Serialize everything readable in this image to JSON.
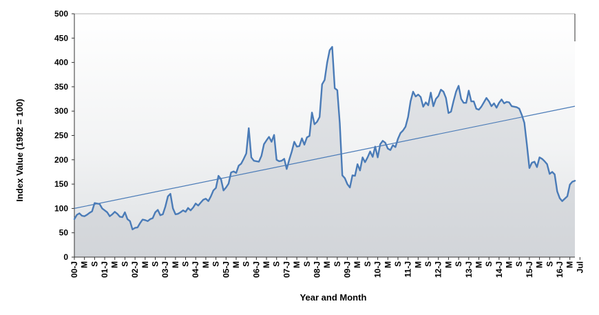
{
  "chart_data": {
    "type": "area",
    "title": "",
    "xlabel": "Year and Month",
    "ylabel": "Index Value (1982 = 100)",
    "ylim": [
      0,
      500
    ],
    "yticks": [
      0,
      50,
      100,
      150,
      200,
      250,
      300,
      350,
      400,
      450,
      500
    ],
    "grid": false,
    "legend": "none",
    "x_tick_labels": [
      "00-J",
      "M",
      "S",
      "01-J",
      "M",
      "S",
      "02-J",
      "M",
      "S",
      "03-J",
      "M",
      "S",
      "04-J",
      "M",
      "S",
      "05-J",
      "M",
      "S",
      "06-J",
      "M",
      "S",
      "07-J",
      "M",
      "S",
      "08-J",
      "M",
      "S",
      "09-J",
      "M",
      "S",
      "10-J",
      "M",
      "S",
      "11-J",
      "M",
      "S",
      "12-J",
      "M",
      "S",
      "13-J",
      "M",
      "S",
      "14-J",
      "M",
      "S",
      "15-J",
      "M",
      "S",
      "16-J",
      "M",
      "Jul"
    ],
    "series": [
      {
        "name": "Index Value",
        "start": "2000-01",
        "frequency": "monthly",
        "values": [
          78,
          87,
          90,
          85,
          84,
          87,
          91,
          94,
          111,
          110,
          109,
          100,
          96,
          92,
          84,
          88,
          93,
          89,
          83,
          82,
          92,
          78,
          74,
          57,
          60,
          61,
          70,
          77,
          76,
          74,
          78,
          80,
          92,
          97,
          86,
          88,
          104,
          125,
          130,
          100,
          88,
          89,
          92,
          96,
          93,
          101,
          96,
          102,
          110,
          106,
          112,
          118,
          120,
          115,
          125,
          137,
          142,
          167,
          160,
          137,
          143,
          151,
          174,
          176,
          173,
          188,
          192,
          202,
          213,
          265,
          205,
          198,
          197,
          196,
          208,
          232,
          240,
          247,
          237,
          251,
          200,
          197,
          198,
          202,
          181,
          200,
          217,
          237,
          227,
          228,
          244,
          231,
          246,
          249,
          297,
          273,
          278,
          288,
          355,
          364,
          400,
          425,
          432,
          347,
          343,
          275,
          168,
          162,
          150,
          143,
          168,
          167,
          191,
          178,
          205,
          195,
          205,
          217,
          206,
          227,
          205,
          232,
          239,
          235,
          223,
          220,
          230,
          226,
          243,
          255,
          260,
          268,
          288,
          320,
          340,
          330,
          334,
          329,
          309,
          318,
          312,
          338,
          310,
          325,
          331,
          344,
          340,
          327,
          296,
          299,
          321,
          340,
          352,
          325,
          317,
          317,
          342,
          320,
          320,
          305,
          303,
          309,
          318,
          327,
          320,
          310,
          316,
          307,
          317,
          324,
          316,
          319,
          318,
          310,
          309,
          308,
          305,
          292,
          276,
          232,
          183,
          194,
          196,
          185,
          205,
          202,
          197,
          191,
          171,
          175,
          170,
          135,
          121,
          115,
          120,
          125,
          149,
          155,
          157
        ],
        "color": "#4a7bb7"
      },
      {
        "name": "Trend",
        "start_value": 100,
        "end_value": 310,
        "color": "#4a7bb7"
      }
    ]
  }
}
